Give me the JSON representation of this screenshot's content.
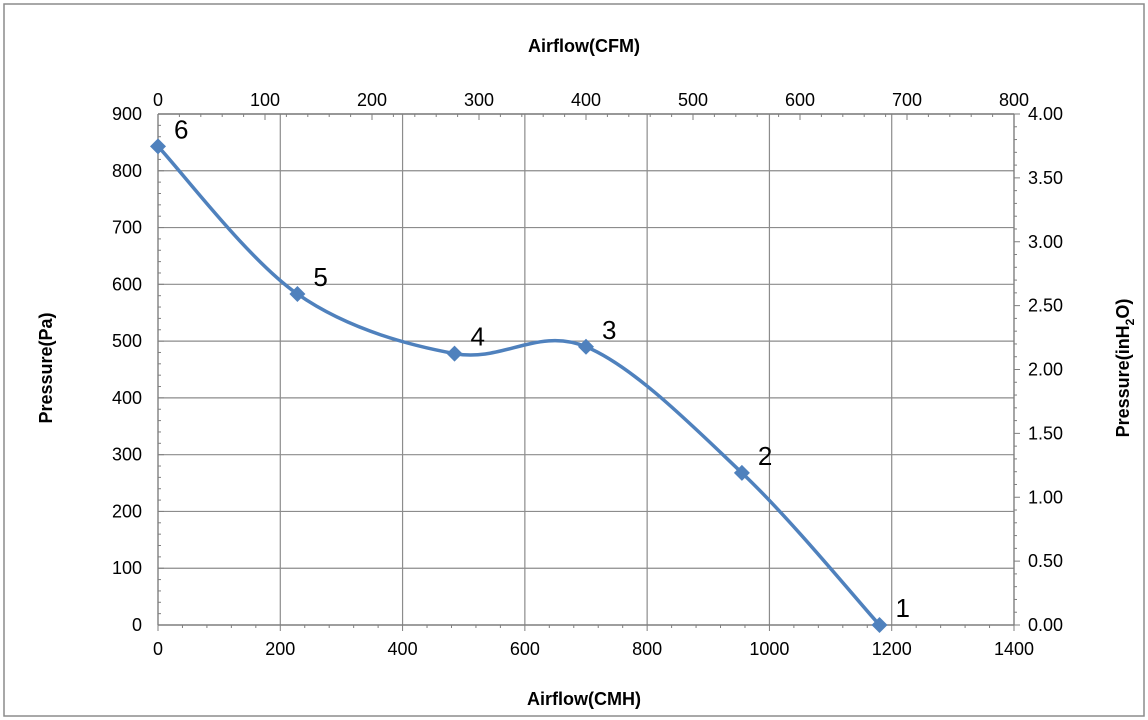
{
  "chart_data": {
    "type": "scatter",
    "x_axis_bottom": {
      "label": "Airflow(CMH)",
      "range": [
        0,
        1400
      ],
      "ticks": [
        "0",
        "200",
        "400",
        "600",
        "800",
        "1000",
        "1200",
        "1400"
      ]
    },
    "x_axis_top": {
      "label": "Airflow(CFM)",
      "range": [
        0,
        800
      ],
      "ticks": [
        "0",
        "100",
        "200",
        "300",
        "400",
        "500",
        "600",
        "700",
        "800"
      ]
    },
    "y_axis_left": {
      "label": "Pressure(Pa)",
      "range": [
        0,
        900
      ],
      "ticks": [
        "0",
        "100",
        "200",
        "300",
        "400",
        "500",
        "600",
        "700",
        "800",
        "900"
      ]
    },
    "y_axis_right": {
      "label_main": "Pressure(inH",
      "label_sub": "2",
      "label_end": "O)",
      "range": [
        0,
        4.0
      ],
      "ticks": [
        "0.00",
        "0.50",
        "1.00",
        "1.50",
        "2.00",
        "2.50",
        "3.00",
        "3.50",
        "4.00"
      ]
    },
    "grid": true,
    "series": [
      {
        "color": "#4f81bd",
        "smooth": true,
        "marker": "diamond",
        "points": [
          {
            "x": 1180,
            "y": 0,
            "label": "1"
          },
          {
            "x": 955,
            "y": 268,
            "label": "2"
          },
          {
            "x": 700,
            "y": 490,
            "label": "3"
          },
          {
            "x": 485,
            "y": 478,
            "label": "4"
          },
          {
            "x": 228,
            "y": 583,
            "label": "5"
          },
          {
            "x": 0,
            "y": 843,
            "label": "6"
          }
        ]
      }
    ]
  }
}
